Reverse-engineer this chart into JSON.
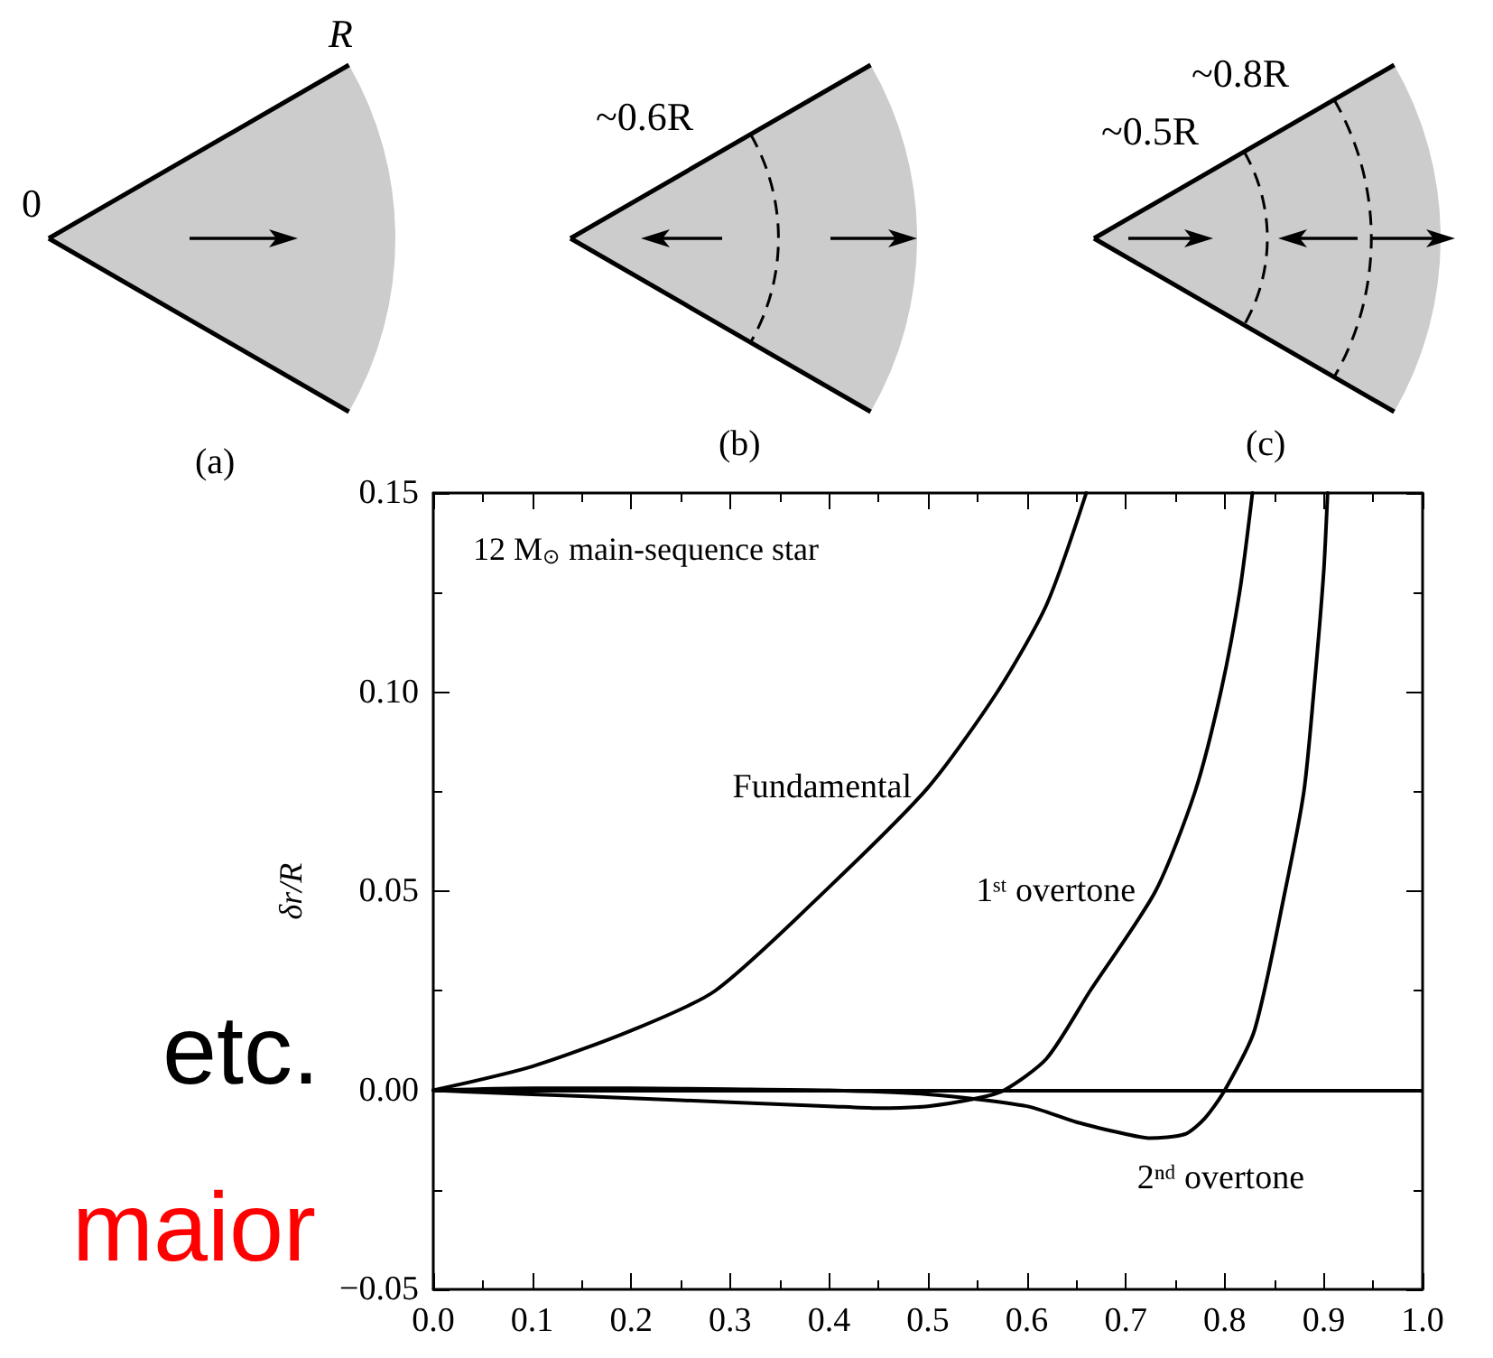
{
  "chart_data": {
    "type": "line",
    "ylabel": "δr/R",
    "annotations": [
      "12 M$_{⊙}$ main-sequence star",
      "0",
      "R",
      "(a)",
      "~0.6R",
      "(b)",
      "~0.5R",
      "~0.8R",
      "(c)",
      "etc.",
      "maior"
    ],
    "series": [
      {
        "name": "Fundamental",
        "color": "#000000",
        "x": [
          0,
          0.1,
          0.2,
          0.285,
          0.4,
          0.5,
          0.57,
          0.62,
          0.66
        ],
        "values": [
          0,
          0.006,
          0.015,
          0.025,
          0.051,
          0.076,
          0.1,
          0.122,
          0.15
        ]
      },
      {
        "name": "1ˢᵗ overtone",
        "color": "#000000",
        "x": [
          0,
          0.1,
          0.2,
          0.3,
          0.4,
          0.45,
          0.5,
          0.55,
          0.577,
          0.62,
          0.664,
          0.73,
          0.77,
          0.796,
          0.815,
          0.828
        ],
        "values": [
          0,
          -0.001,
          -0.002,
          -0.003,
          -0.004,
          -0.0045,
          -0.004,
          -0.002,
          0,
          0.008,
          0.025,
          0.05,
          0.075,
          0.1,
          0.125,
          0.15
        ]
      },
      {
        "name": "2ⁿᵈ overtone",
        "color": "#000000",
        "x": [
          0,
          0.1,
          0.2,
          0.3,
          0.4,
          0.5,
          0.6,
          0.65,
          0.7,
          0.723,
          0.76,
          0.78,
          0.8,
          0.83,
          0.861,
          0.88,
          0.89,
          0.9,
          0.904
        ],
        "values": [
          0,
          0.0005,
          0.0005,
          0.0003,
          0,
          -0.001,
          -0.004,
          -0.008,
          -0.011,
          -0.012,
          -0.011,
          -0.007,
          0,
          0.015,
          0.05,
          0.075,
          0.1,
          0.13,
          0.15
        ]
      }
    ],
    "xlim": [
      0,
      1
    ],
    "ylim": [
      -0.05,
      0.15
    ],
    "xticks": [
      {
        "value": 0,
        "label": "0.0"
      },
      0.1,
      0.2,
      0.3,
      0.4,
      0.5,
      0.6,
      0.7,
      0.8,
      0.9,
      {
        "value": 1,
        "label": "1.0"
      }
    ],
    "yticks": [
      {
        "value": -0.05,
        "label": "−0.05"
      },
      {
        "value": 0,
        "label": "0.00"
      },
      0.05,
      {
        "value": 0.1,
        "label": "0.10"
      },
      0.15
    ],
    "ref_lines": [
      {
        "axis": "y",
        "value": 0,
        "color": "#000000"
      }
    ],
    "grid": false,
    "legend": false,
    "marker": "none",
    "line_style": "solid"
  }
}
